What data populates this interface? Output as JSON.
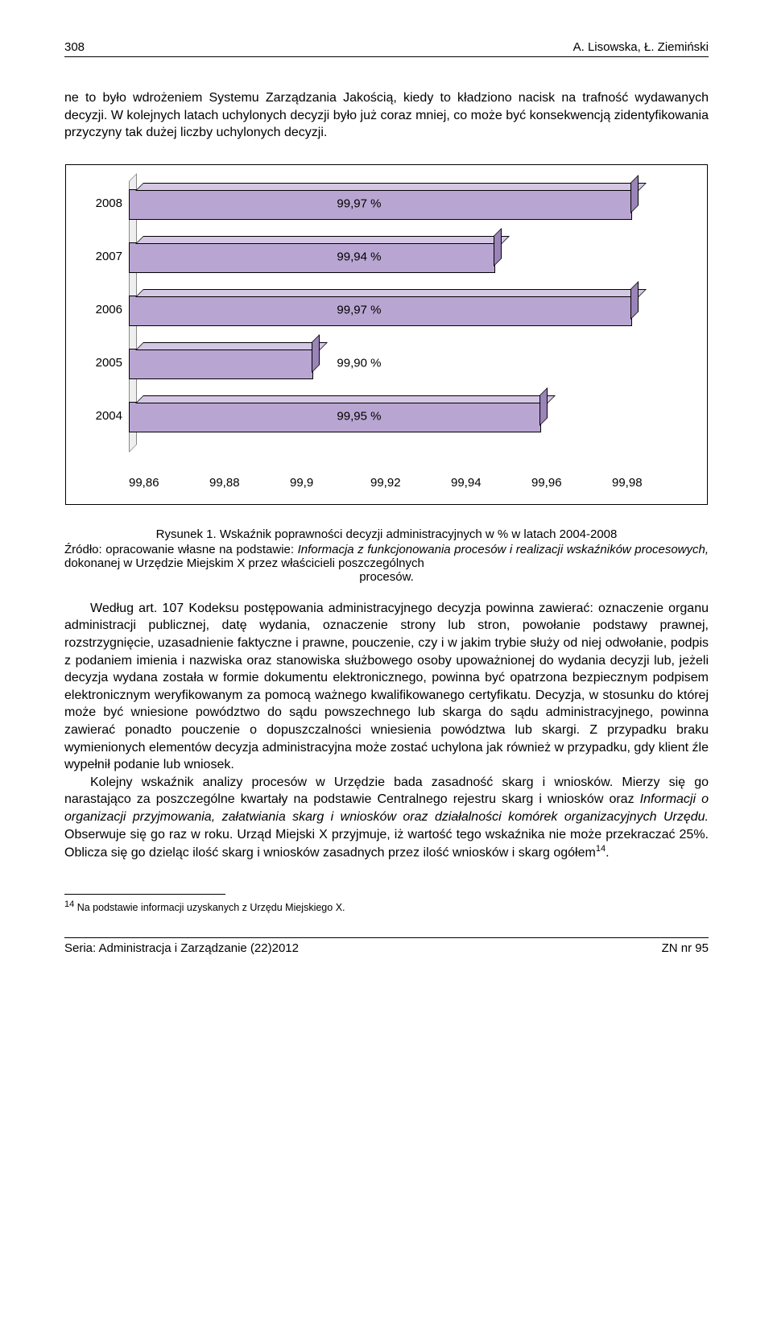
{
  "header": {
    "page_number": "308",
    "authors": "A. Lisowska, Ł. Ziemiński"
  },
  "intro_para": "ne to było wdrożeniem Systemu Zarządzania Jakością, kiedy to kładziono nacisk na trafność wydawanych decyzji. W kolejnych latach uchylonych decyzji było już coraz mniej, co może być konsekwencją zidentyfikowania przyczyny tak dużej liczby uchylonych decyzji.",
  "chart": {
    "type": "horizontal_bar_3d",
    "categories": [
      "2008",
      "2007",
      "2006",
      "2005",
      "2004"
    ],
    "values": [
      99.97,
      99.94,
      99.97,
      99.9,
      99.95
    ],
    "value_labels": [
      "99,97 %",
      "99,94 %",
      "99,97 %",
      "99,90 %",
      "99,95 %"
    ],
    "xticks": [
      "99,86",
      "99,88",
      "99,9",
      "99,92",
      "99,94",
      "99,96",
      "99,98"
    ],
    "xmin": 99.86,
    "xmax": 99.98,
    "bar_face_color": "#b9a5d1",
    "bar_top_color": "#d4c7e4",
    "bar_side_color": "#9a84b8",
    "border_color": "#000000",
    "ylabel_fontsize": 15,
    "value_fontsize": 15,
    "tick_fontsize": 15,
    "background_color": "#ffffff"
  },
  "caption": {
    "title": "Rysunek 1. Wskaźnik poprawności decyzji administracyjnych w % w latach 2004-2008",
    "source_prefix": "Źródło: opracowanie własne na podstawie: ",
    "source_italic": "Informacja z funkcjonowania procesów i realizacji wskaźników procesowych,",
    "source_suffix": " dokonanej w Urzędzie Miejskim X przez właścicieli poszczególnych",
    "source_last_centered": "procesów."
  },
  "body1_a": "Według art. 107 Kodeksu postępowania administracyjnego decyzja powinna zawierać: oznaczenie organu administracji publicznej, datę wydania, oznaczenie strony lub stron, powołanie podstawy prawnej, rozstrzygnięcie, uzasadnienie faktyczne i prawne, pouczenie, czy i w jakim trybie służy od niej odwołanie, podpis z podaniem imienia i nazwiska oraz stanowiska służbowego osoby upoważnionej do wydania decyzji lub, jeżeli decyzja wydana została w formie dokumentu elektronicznego, powinna być opatrzona bezpiecznym podpisem elektronicznym weryfikowanym za pomocą ważnego kwalifikowanego certyfikatu. Decyzja, w stosunku do której może być wniesione powództwo do sądu powszechnego lub skarga do sądu administracyjnego, powinna zawierać ponadto pouczenie o dopuszczalności wniesienia powództwa lub skargi. Z przypadku braku wymienionych elementów decyzja administracyjna może zostać uchylona jak również w przypadku, gdy klient źle wypełnił podanie lub wniosek.",
  "body2_prefix": "Kolejny wskaźnik analizy procesów w Urzędzie bada zasadność skarg i wniosków. Mierzy się go narastająco za poszczególne kwartały na podstawie Centralnego rejestru skarg i wniosków oraz ",
  "body2_italic": "Informacji o organizacji przyjmowania, załatwiania skarg i wniosków oraz działalności komórek organizacyjnych Urzędu.",
  "body2_suffix": " Obserwuje się go raz w roku. Urząd Miejski X przyjmuje, iż wartość tego wskaźnika nie może przekraczać 25%. Oblicza się go dzieląc ilość skarg i wniosków zasadnych przez ilość wniosków i skarg ogółem",
  "footnote_marker": "14",
  "footnote_text": " Na podstawie informacji uzyskanych z Urzędu Miejskiego X.",
  "footer": {
    "left": "Seria: Administracja i Zarządzanie (22)2012",
    "right": "ZN nr 95"
  }
}
